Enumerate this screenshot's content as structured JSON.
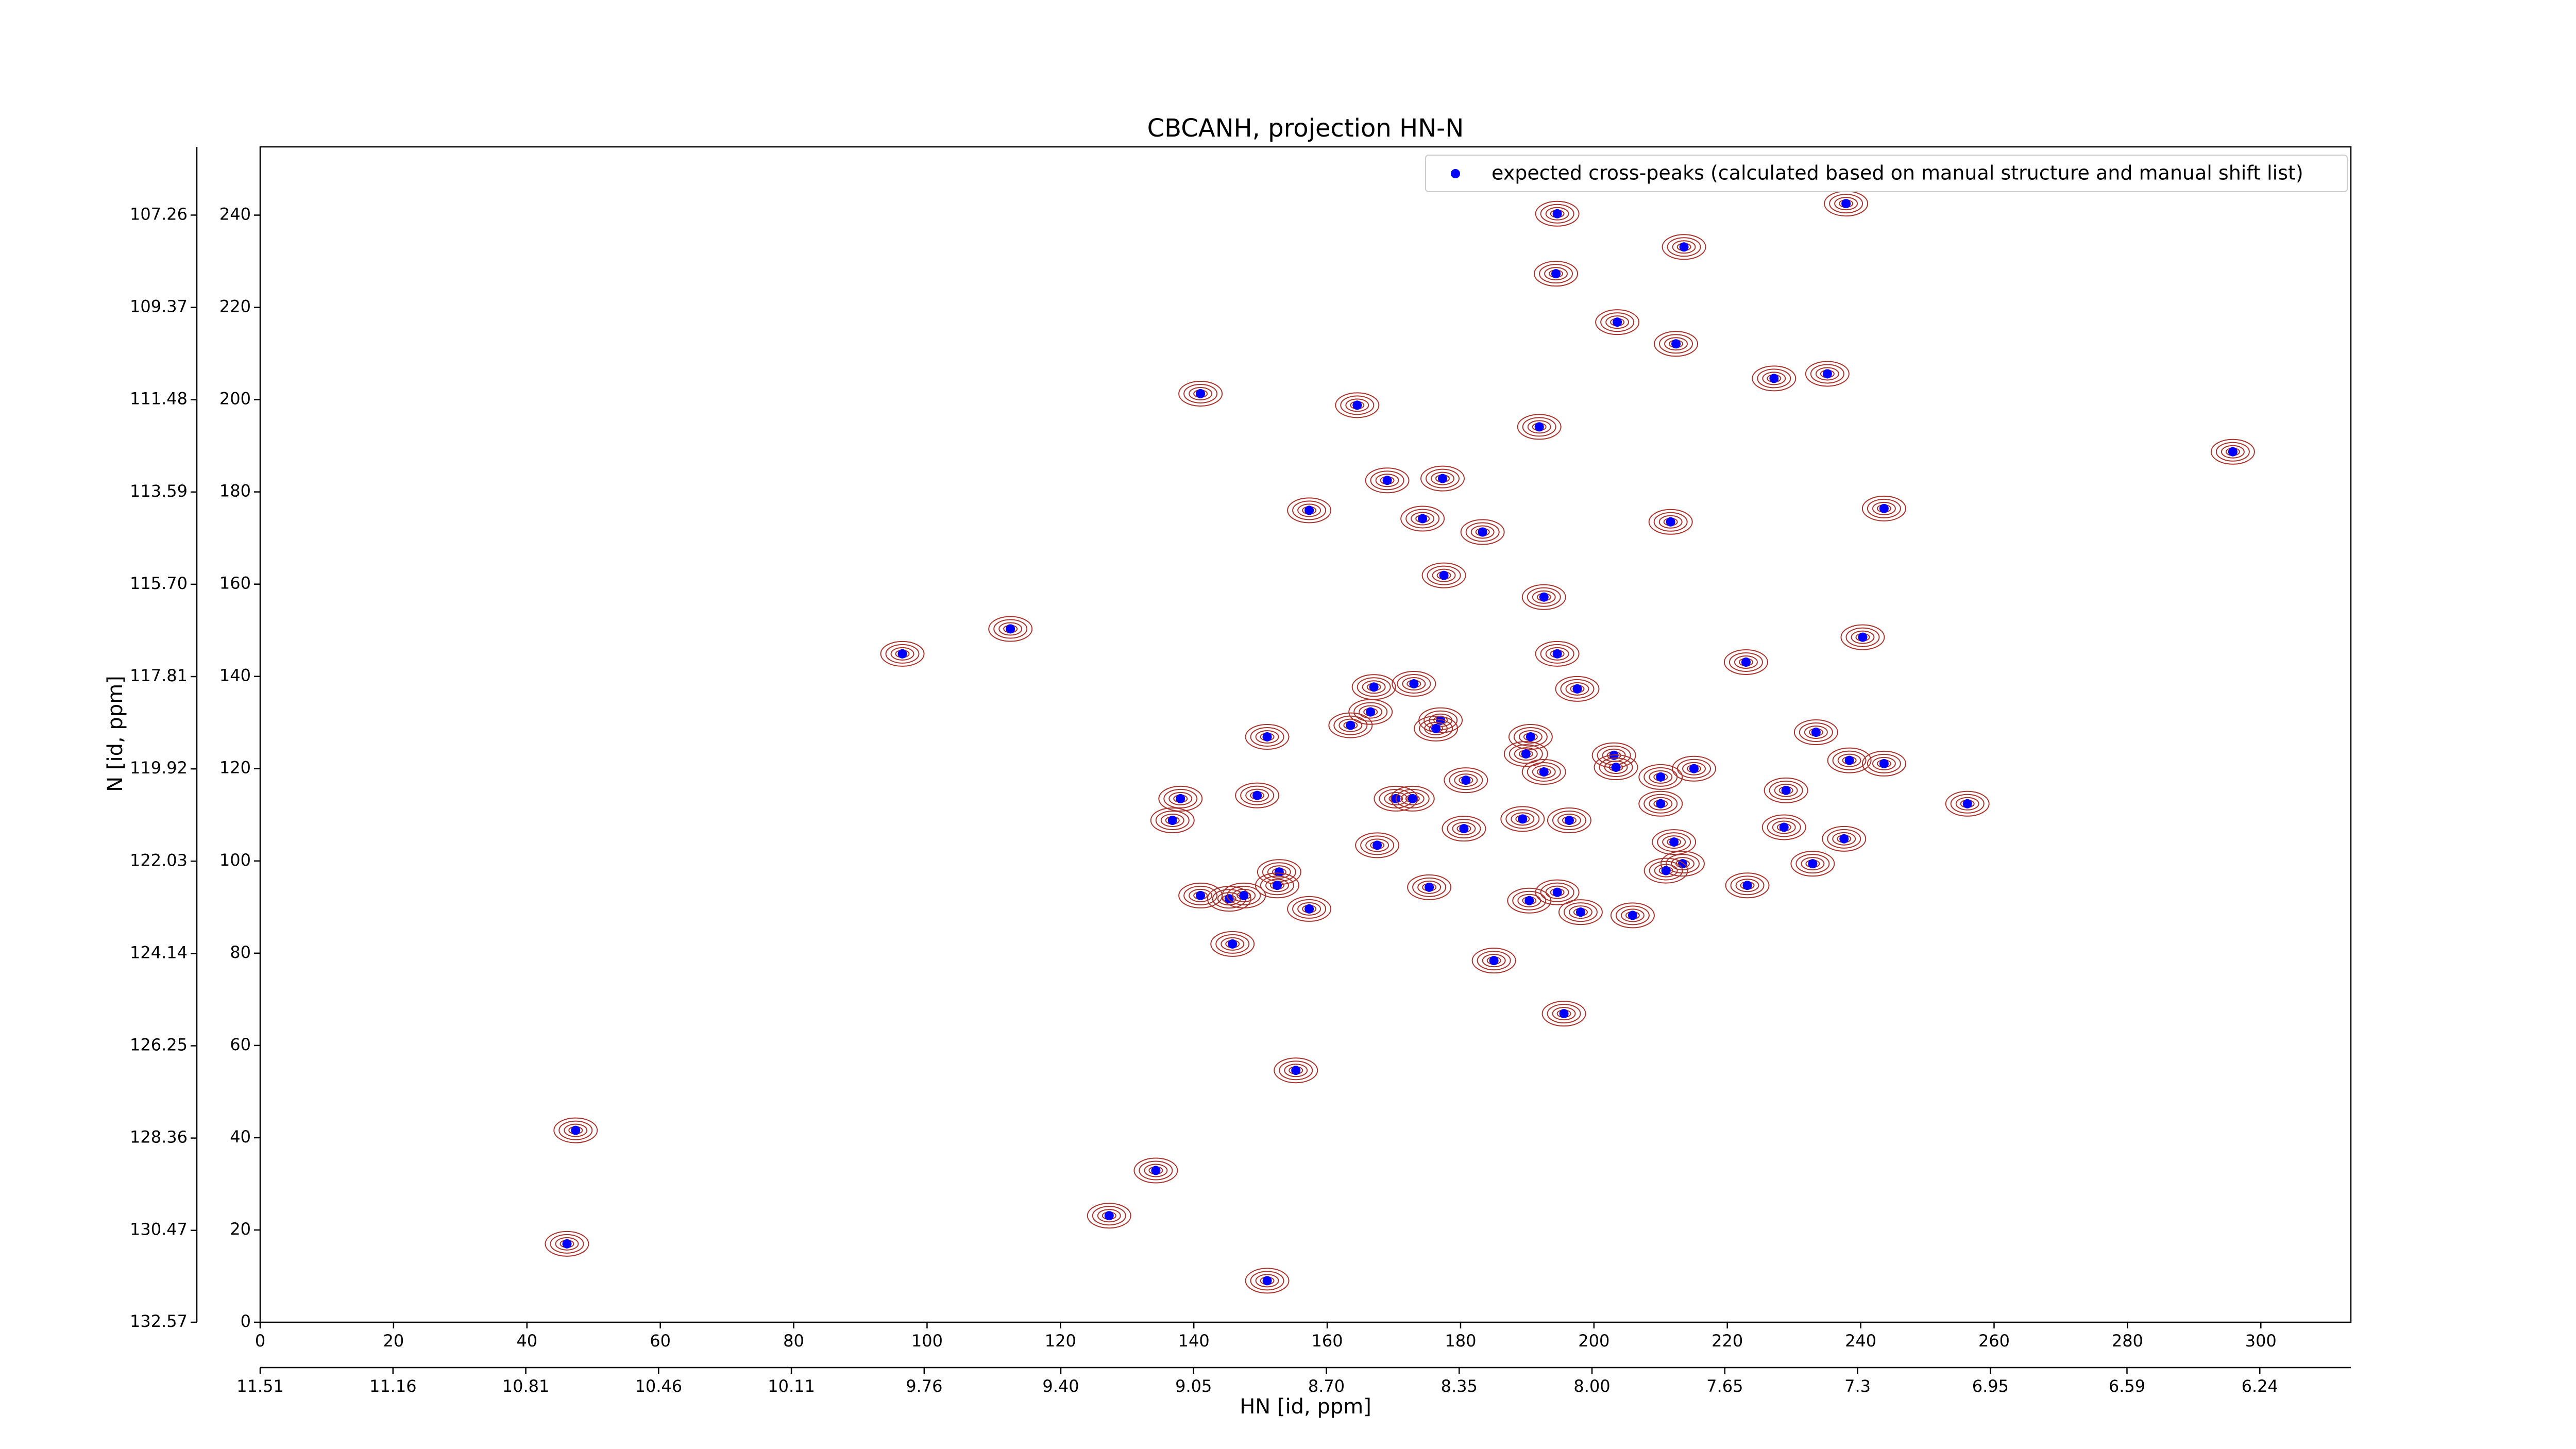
{
  "chart_data": {
    "type": "scatter",
    "title": "CBCANH, projection HN-N",
    "x_label": "HN [id, ppm]",
    "y_label": "N [id, ppm]",
    "legend": "upper right",
    "contour_color": "#a8332d",
    "xlim": [
      0,
      313.5
    ],
    "ylim": [
      0,
      254.8
    ],
    "xticks": [
      0,
      20,
      40,
      60,
      80,
      100,
      120,
      140,
      160,
      180,
      200,
      220,
      240,
      260,
      280,
      300
    ],
    "yticks": [
      0,
      20,
      40,
      60,
      80,
      100,
      120,
      140,
      160,
      180,
      200,
      220,
      240
    ],
    "x2lim": [
      11.51,
      6.0
    ],
    "x2ticks": [
      11.51,
      11.16,
      10.81,
      10.46,
      10.11,
      9.76,
      {
        "value": 9.4,
        "label": "9.40"
      },
      9.05,
      {
        "value": 8.7,
        "label": "8.70"
      },
      8.35,
      {
        "value": 8.0,
        "label": "8.00"
      },
      7.65,
      7.3,
      6.95,
      6.59,
      6.24
    ],
    "y2lim": [
      132.57,
      105.7
    ],
    "y2ticks": [
      132.57,
      130.47,
      128.36,
      126.25,
      124.14,
      122.03,
      119.92,
      117.81,
      {
        "value": 115.7,
        "label": "115.70"
      },
      113.59,
      111.48,
      109.37,
      107.26
    ],
    "series": [
      {
        "name": "expected cross-peaks (calculated based on manual structure and manual shift list)",
        "color": "#0000ff",
        "x": [
          194.5,
          237.8,
          213.5,
          194.3,
          203.5,
          212.3,
          227,
          235,
          141,
          164.5,
          191.8,
          295.8,
          169,
          177.3,
          157.3,
          174.3,
          183.3,
          211.5,
          243.5,
          177.5,
          192.5,
          112.5,
          240.3,
          96.3,
          194.5,
          222.8,
          167,
          173,
          197.5,
          166.5,
          163.5,
          177,
          176.3,
          190.5,
          151,
          233.3,
          189.8,
          203,
          238.3,
          243.5,
          215,
          203.3,
          192.5,
          180.8,
          210,
          149.5,
          138,
          170.3,
          172.8,
          228.8,
          210,
          256,
          136.8,
          189.3,
          196.3,
          180.5,
          228.5,
          212,
          237.5,
          167.5,
          213.3,
          232.8,
          210.8,
          152.8,
          175.3,
          223,
          141,
          145.3,
          147.5,
          152.5,
          190.3,
          194.5,
          157.3,
          198,
          205.8,
          145.8,
          185,
          195.5,
          155.3,
          47.3,
          134.3,
          127.3,
          46,
          151
        ],
        "values": [
          240.3,
          242.5,
          233.1,
          227.3,
          216.8,
          212.1,
          204.6,
          205.6,
          201.3,
          198.8,
          194.1,
          188.7,
          182.5,
          182.9,
          176,
          174.2,
          171.3,
          173.5,
          176.4,
          161.9,
          157.2,
          150.3,
          148.5,
          144.9,
          144.9,
          143.1,
          137.7,
          138.4,
          137.3,
          132.3,
          129.4,
          130.5,
          128.7,
          126.9,
          126.9,
          127.9,
          123.2,
          122.9,
          121.8,
          121.1,
          120,
          120.3,
          119.3,
          117.5,
          118.2,
          114.2,
          113.5,
          113.5,
          113.5,
          115.3,
          112.4,
          112.4,
          108.8,
          109.1,
          108.8,
          107,
          107.3,
          104.1,
          104.8,
          103.4,
          99.4,
          99.4,
          97.9,
          97.6,
          94.3,
          94.7,
          92.5,
          91.8,
          92.5,
          94.7,
          91.4,
          93.2,
          89.6,
          88.9,
          88.2,
          82,
          78.4,
          66.9,
          54.6,
          41.6,
          32.9,
          23.1,
          17,
          9
        ]
      }
    ]
  }
}
